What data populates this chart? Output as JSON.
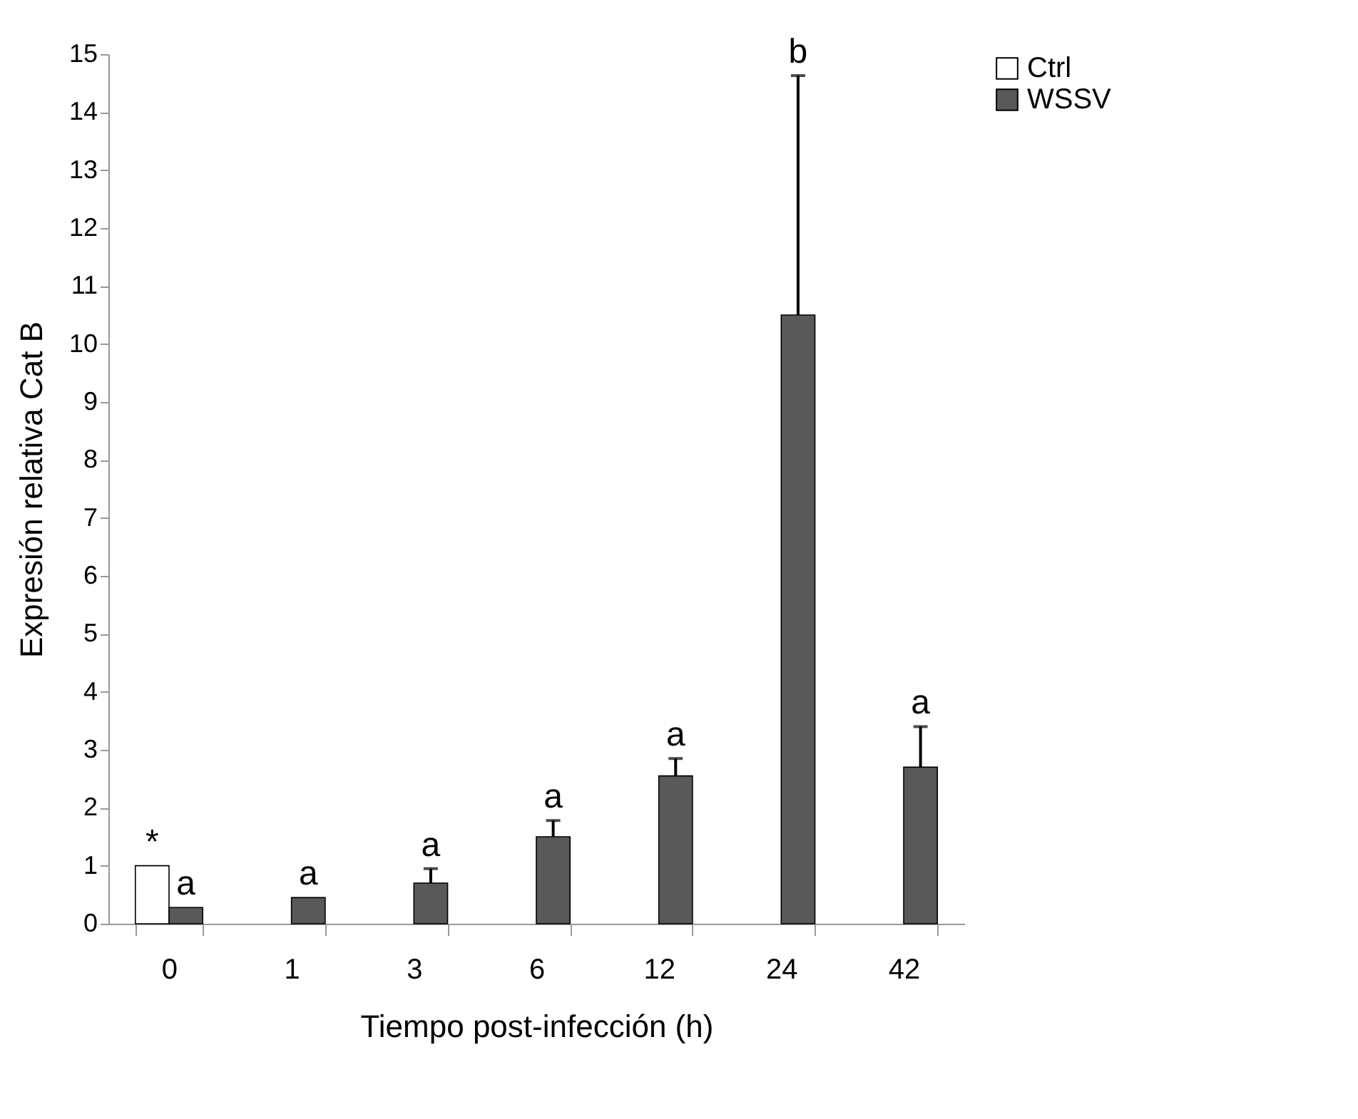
{
  "chart_data": {
    "type": "bar",
    "xlabel": "Tiempo post-infección (h)",
    "ylabel": "Expresión relativa  Cat B",
    "categories": [
      "0",
      "1",
      "3",
      "6",
      "12",
      "24",
      "42"
    ],
    "series": [
      {
        "name": "Ctrl",
        "color": "#ffffff",
        "values": [
          1.0,
          null,
          null,
          null,
          null,
          null,
          null
        ]
      },
      {
        "name": "WSSV",
        "color": "#595959",
        "values": [
          0.28,
          0.45,
          0.7,
          1.5,
          2.55,
          10.5,
          2.7
        ],
        "errors": [
          null,
          null,
          [
            0.7,
            0.95
          ],
          [
            1.5,
            1.78
          ],
          [
            2.55,
            2.85
          ],
          [
            10.5,
            14.63
          ],
          [
            2.7,
            3.4
          ]
        ]
      }
    ],
    "ylim": [
      0,
      15
    ],
    "yticks": [
      0,
      1,
      2,
      3,
      4,
      5,
      6,
      7,
      8,
      9,
      10,
      11,
      12,
      13,
      14,
      15
    ],
    "grid": false,
    "legend": "right",
    "annotations": [
      "*",
      "a",
      "a",
      "a",
      "a",
      "a",
      "b",
      "a"
    ]
  }
}
